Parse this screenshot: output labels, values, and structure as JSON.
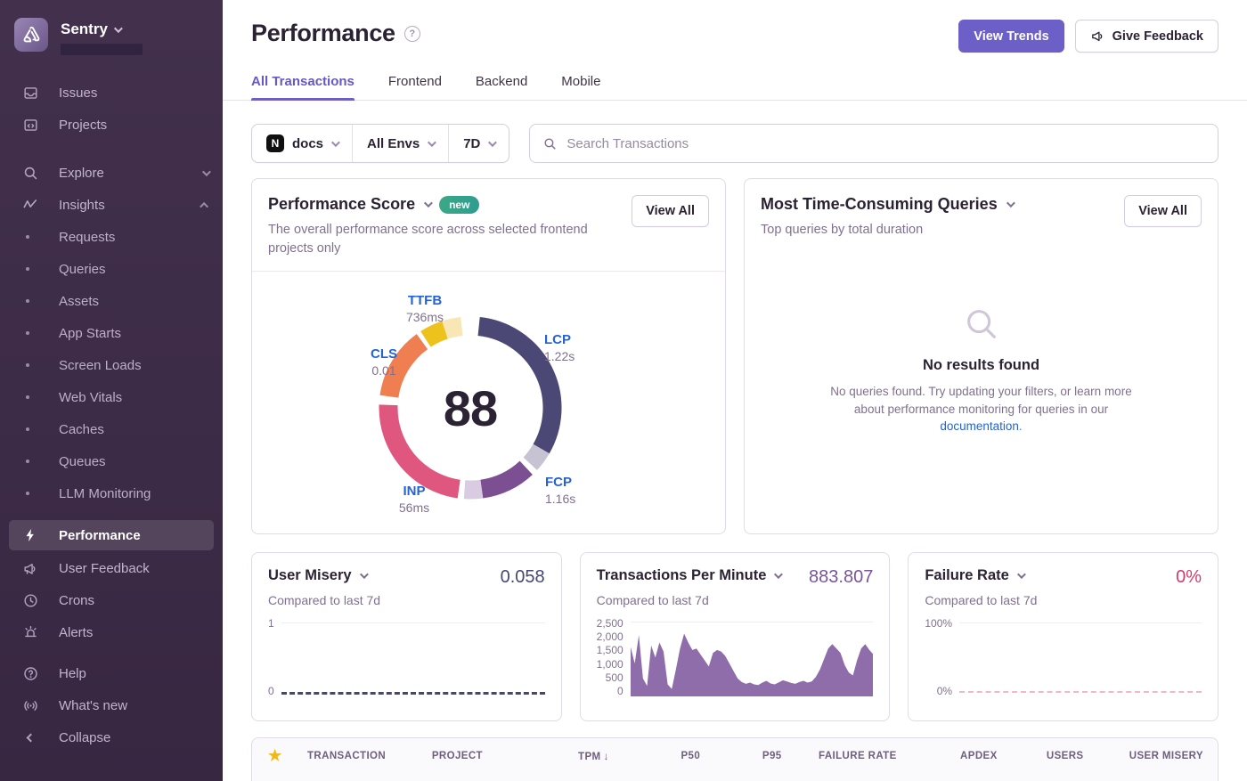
{
  "colors": {
    "accent_purple": "#6c5fc7",
    "active_tab": "#6559c5",
    "badge_green": "#35a48a",
    "link_blue": "#2562d4",
    "star_gold": "#f2b712",
    "user_misery_value": "#444674",
    "tpm_value": "#7a549b",
    "failure_value": "#d43b6c",
    "sidebar_bg": "#3f2d4a"
  },
  "sidebar": {
    "brand": {
      "name": "Sentry"
    },
    "primary": [
      {
        "label": "Issues"
      },
      {
        "label": "Projects"
      }
    ],
    "explore": {
      "label": "Explore"
    },
    "insights": {
      "label": "Insights",
      "children": [
        {
          "label": "Requests"
        },
        {
          "label": "Queries"
        },
        {
          "label": "Assets"
        },
        {
          "label": "App Starts"
        },
        {
          "label": "Screen Loads"
        },
        {
          "label": "Web Vitals"
        },
        {
          "label": "Caches"
        },
        {
          "label": "Queues"
        },
        {
          "label": "LLM Monitoring"
        }
      ]
    },
    "secondary": [
      {
        "label": "Performance",
        "active": true
      },
      {
        "label": "User Feedback"
      },
      {
        "label": "Crons"
      },
      {
        "label": "Alerts"
      }
    ],
    "tertiary": [
      {
        "label": "Help"
      },
      {
        "label": "What's new"
      }
    ],
    "collapse_label": "Collapse"
  },
  "header": {
    "title": "Performance",
    "view_trends_label": "View Trends",
    "give_feedback_label": "Give Feedback"
  },
  "tabs": [
    {
      "label": "All Transactions",
      "active": true
    },
    {
      "label": "Frontend"
    },
    {
      "label": "Backend"
    },
    {
      "label": "Mobile"
    }
  ],
  "filters": {
    "project": "docs",
    "project_platform_letter": "N",
    "environment": "All Envs",
    "date_range": "7D",
    "search_placeholder": "Search Transactions"
  },
  "performance_score": {
    "title": "Performance Score",
    "badge": "new",
    "description": "The overall performance score across selected frontend projects only",
    "view_all_label": "View All",
    "score": "88",
    "vitals": [
      {
        "name": "TTFB",
        "value": "736ms"
      },
      {
        "name": "LCP",
        "value": "1.22s"
      },
      {
        "name": "CLS",
        "value": "0.01"
      },
      {
        "name": "INP",
        "value": "56ms"
      },
      {
        "name": "FCP",
        "value": "1.16s"
      }
    ],
    "ring": [
      {
        "name": "lcp",
        "color": "#4b4875",
        "start": 6,
        "end": 120
      },
      {
        "name": "lcp-rest",
        "color": "#c7c3d3",
        "start": 120,
        "end": 133
      },
      {
        "name": "fcp",
        "color": "#7c4e92",
        "start": 137,
        "end": 172
      },
      {
        "name": "fcp-rest",
        "color": "#d9cbe2",
        "start": 172,
        "end": 184
      },
      {
        "name": "inp",
        "color": "#df567f",
        "start": 188,
        "end": 272
      },
      {
        "name": "cls",
        "color": "#ef7e50",
        "start": 278,
        "end": 324
      },
      {
        "name": "ttfb",
        "color": "#eec21c",
        "start": 327,
        "end": 342
      },
      {
        "name": "ttfb-rest",
        "color": "#f8e7b5",
        "start": 342,
        "end": 354
      }
    ]
  },
  "queries_card": {
    "title": "Most Time-Consuming Queries",
    "subtitle": "Top queries by total duration",
    "view_all_label": "View All",
    "empty_title": "No results found",
    "empty_text_before_link": "No queries found. Try updating your filters, or learn more about performance monitoring for queries in our ",
    "empty_link": "documentation",
    "empty_text_after_link": "."
  },
  "mini_cards": {
    "user_misery": {
      "title": "User Misery",
      "value": "0.058",
      "subtitle": "Compared to last 7d",
      "chart_data": {
        "type": "line",
        "ylim": [
          0,
          1
        ],
        "yticks": [
          "1",
          "0"
        ],
        "current": 0.058
      }
    },
    "tpm": {
      "title": "Transactions Per Minute",
      "value": "883.807",
      "subtitle": "Compared to last 7d",
      "chart_data": {
        "type": "area",
        "ylim": [
          0,
          2500
        ],
        "yticks": [
          "2,500",
          "2,000",
          "1,500",
          "1,000",
          "500",
          "0"
        ],
        "values": [
          1650,
          1100,
          2050,
          600,
          350,
          1700,
          1300,
          1800,
          1500,
          400,
          250,
          900,
          1600,
          2100,
          1800,
          1550,
          1600,
          1400,
          1200,
          1000,
          1450,
          1550,
          1500,
          1350,
          1100,
          850,
          600,
          480,
          420,
          460,
          400,
          380,
          460,
          520,
          430,
          400,
          470,
          540,
          500,
          450,
          420,
          480,
          520,
          460,
          500,
          650,
          900,
          1250,
          1600,
          1750,
          1600,
          1450,
          1050,
          800,
          700,
          1200,
          1600,
          1750,
          1550,
          1400
        ],
        "fill_color": "#7a549b"
      }
    },
    "failure_rate": {
      "title": "Failure Rate",
      "value": "0%",
      "subtitle": "Compared to last 7d",
      "chart_data": {
        "type": "line",
        "ylim": [
          0,
          100
        ],
        "yticks": [
          "100%",
          "0%"
        ],
        "current": 0
      }
    }
  },
  "table": {
    "columns": [
      {
        "label": "TRANSACTION"
      },
      {
        "label": "PROJECT"
      },
      {
        "label": "TPM",
        "sorted": "desc"
      },
      {
        "label": "P50"
      },
      {
        "label": "P95"
      },
      {
        "label": "FAILURE RATE"
      },
      {
        "label": "APDEX"
      },
      {
        "label": "USERS"
      },
      {
        "label": "USER MISERY"
      }
    ],
    "sort_arrow": "↓",
    "star_icon": "★"
  }
}
